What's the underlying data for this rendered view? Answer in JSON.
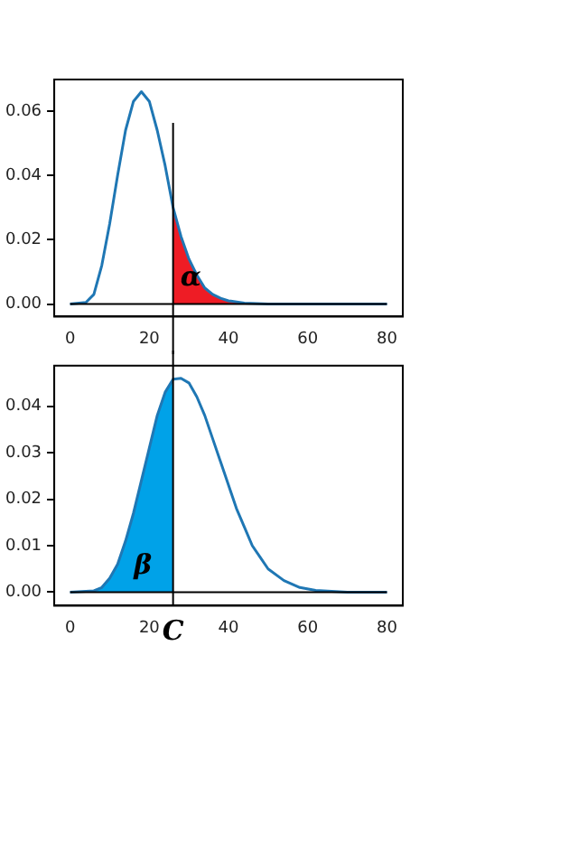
{
  "chart_data": [
    {
      "type": "line",
      "xlim": [
        -4,
        84
      ],
      "xticks": [
        0,
        20,
        40,
        60,
        80
      ],
      "ylim": [
        -0.0039,
        0.0698
      ],
      "yticks": [
        {
          "value": 0,
          "label": "0.00"
        },
        {
          "value": 0.02,
          "label": "0.02"
        },
        {
          "value": 0.04,
          "label": "0.04"
        },
        {
          "value": 0.06,
          "label": "0.06"
        }
      ],
      "grid": false,
      "legend": false,
      "marker": "none",
      "series": [
        {
          "type": "area",
          "color": "#ee1c25",
          "x": [
            26,
            28,
            30,
            32,
            34,
            36,
            38,
            40,
            44
          ],
          "values": [
            0.03,
            0.021,
            0.014,
            0.009,
            0.005,
            0.003,
            0.0018,
            0.001,
            0.0003
          ]
        },
        {
          "type": "line",
          "color": "#1f77b4",
          "x": [
            0,
            4,
            6,
            8,
            10,
            12,
            14,
            16,
            18,
            20,
            22,
            24,
            26,
            28,
            30,
            32,
            34,
            36,
            38,
            40,
            44,
            50,
            80
          ],
          "values": [
            0,
            0.0005,
            0.003,
            0.012,
            0.025,
            0.04,
            0.054,
            0.063,
            0.066,
            0.063,
            0.054,
            0.043,
            0.03,
            0.021,
            0.014,
            0.009,
            0.005,
            0.003,
            0.0018,
            0.001,
            0.0003,
            0,
            0
          ]
        }
      ],
      "ref_lines": [
        {
          "axis": "x",
          "value": 26,
          "color": "#000000"
        },
        {
          "axis": "y",
          "value": 0,
          "color": "#000000"
        }
      ],
      "annotations": [
        "α"
      ]
    },
    {
      "type": "line",
      "xlim": [
        -4,
        84
      ],
      "xticks": [
        0,
        20,
        40,
        60,
        80
      ],
      "ylim": [
        -0.0029,
        0.0487
      ],
      "yticks": [
        {
          "value": 0,
          "label": "0.00"
        },
        {
          "value": 0.01,
          "label": "0.01"
        },
        {
          "value": 0.02,
          "label": "0.02"
        },
        {
          "value": 0.03,
          "label": "0.03"
        },
        {
          "value": 0.04,
          "label": "0.04"
        }
      ],
      "grid": false,
      "legend": false,
      "marker": "none",
      "series": [
        {
          "type": "area",
          "color": "#00a2e8",
          "x": [
            6,
            8,
            10,
            12,
            14,
            16,
            18,
            20,
            22,
            24,
            26
          ],
          "values": [
            0.0003,
            0.001,
            0.003,
            0.006,
            0.011,
            0.017,
            0.024,
            0.031,
            0.038,
            0.043,
            0.0458
          ]
        },
        {
          "type": "line",
          "color": "#1f77b4",
          "x": [
            0,
            6,
            8,
            10,
            12,
            14,
            16,
            18,
            20,
            22,
            24,
            26,
            28,
            30,
            32,
            34,
            36,
            38,
            40,
            42,
            44,
            46,
            48,
            50,
            54,
            58,
            62,
            70,
            80
          ],
          "values": [
            0,
            0.0003,
            0.001,
            0.003,
            0.006,
            0.011,
            0.017,
            0.024,
            0.031,
            0.038,
            0.043,
            0.0458,
            0.046,
            0.045,
            0.042,
            0.038,
            0.033,
            0.028,
            0.023,
            0.018,
            0.014,
            0.01,
            0.0075,
            0.005,
            0.0025,
            0.001,
            0.0004,
            0,
            0
          ]
        }
      ],
      "ref_lines": [
        {
          "axis": "x",
          "value": 26,
          "color": "#000000"
        },
        {
          "axis": "y",
          "value": 0,
          "color": "#000000"
        }
      ],
      "annotations": [
        "β",
        "C"
      ]
    }
  ]
}
